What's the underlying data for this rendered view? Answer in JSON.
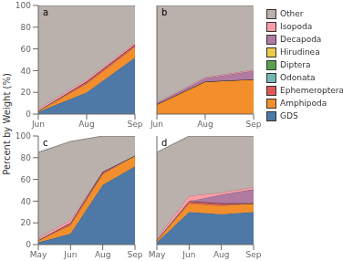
{
  "chart_data": [
    {
      "type": "area",
      "title": "a",
      "ylabel": "Percent by Weight (%)",
      "stacked": true,
      "grid": false,
      "legend": "right",
      "categories": [
        "Jun",
        "Aug",
        "Sep"
      ],
      "ylim": [
        0,
        100
      ],
      "yticks": [
        0,
        20,
        40,
        60,
        80,
        100
      ],
      "series": [
        {
          "name": "GDS",
          "color": "#4e79a7",
          "values": [
            2,
            20,
            52
          ]
        },
        {
          "name": "Amphipoda",
          "color": "#f28e2b",
          "values": [
            1,
            8,
            10
          ]
        },
        {
          "name": "Ephemeroptera",
          "color": "#e15759",
          "values": [
            0,
            2,
            2
          ]
        },
        {
          "name": "Odonata",
          "color": "#76b7b2",
          "values": [
            0,
            0,
            0
          ]
        },
        {
          "name": "Diptera",
          "color": "#59a14f",
          "values": [
            0,
            0,
            0
          ]
        },
        {
          "name": "Hirudinea",
          "color": "#edc948",
          "values": [
            0,
            0,
            0
          ]
        },
        {
          "name": "Decapoda",
          "color": "#b07aa1",
          "values": [
            0,
            0,
            0
          ]
        },
        {
          "name": "Isopoda",
          "color": "#ff9da7",
          "values": [
            2,
            2,
            2
          ]
        },
        {
          "name": "Other",
          "color": "#bab0ac",
          "values": [
            95,
            68,
            34
          ]
        }
      ]
    },
    {
      "type": "area",
      "title": "b",
      "stacked": true,
      "grid": false,
      "tick_labels": "x",
      "categories": [
        "Jun",
        "Aug",
        "Sep"
      ],
      "ylim": [
        0,
        100
      ],
      "yticks": [
        0,
        20,
        40,
        60,
        80,
        100
      ],
      "series": [
        {
          "name": "GDS",
          "color": "#4e79a7",
          "values": [
            0,
            0,
            0
          ]
        },
        {
          "name": "Amphipoda",
          "color": "#f28e2b",
          "values": [
            9,
            30,
            32
          ]
        },
        {
          "name": "Ephemeroptera",
          "color": "#e15759",
          "values": [
            0,
            0,
            0
          ]
        },
        {
          "name": "Odonata",
          "color": "#76b7b2",
          "values": [
            0,
            0,
            0
          ]
        },
        {
          "name": "Diptera",
          "color": "#59a14f",
          "values": [
            0,
            0,
            0
          ]
        },
        {
          "name": "Hirudinea",
          "color": "#edc948",
          "values": [
            0,
            0,
            0
          ]
        },
        {
          "name": "Decapoda",
          "color": "#b07aa1",
          "values": [
            1,
            3,
            8
          ]
        },
        {
          "name": "Isopoda",
          "color": "#ff9da7",
          "values": [
            1,
            1,
            1
          ]
        },
        {
          "name": "Other",
          "color": "#bab0ac",
          "values": [
            89,
            66,
            59
          ]
        }
      ]
    },
    {
      "type": "area",
      "title": "c",
      "stacked": true,
      "grid": false,
      "categories": [
        "May",
        "Jun",
        "Aug",
        "Sep"
      ],
      "ylim": [
        0,
        100
      ],
      "yticks": [
        0,
        20,
        40,
        60,
        80,
        100
      ],
      "series": [
        {
          "name": "GDS",
          "color": "#4e79a7",
          "values": [
            2,
            10,
            55,
            72
          ]
        },
        {
          "name": "Amphipoda",
          "color": "#f28e2b",
          "values": [
            2,
            8,
            10,
            10
          ]
        },
        {
          "name": "Ephemeroptera",
          "color": "#e15759",
          "values": [
            0,
            2,
            2,
            0
          ]
        },
        {
          "name": "Odonata",
          "color": "#76b7b2",
          "values": [
            0,
            0,
            0,
            0
          ]
        },
        {
          "name": "Diptera",
          "color": "#59a14f",
          "values": [
            0,
            0,
            0,
            0
          ]
        },
        {
          "name": "Hirudinea",
          "color": "#edc948",
          "values": [
            0,
            0,
            0,
            0
          ]
        },
        {
          "name": "Decapoda",
          "color": "#b07aa1",
          "values": [
            0,
            0,
            0,
            0
          ]
        },
        {
          "name": "Isopoda",
          "color": "#ff9da7",
          "values": [
            2,
            3,
            0,
            0
          ]
        },
        {
          "name": "Other",
          "color": "#bab0ac",
          "values": [
            79,
            72,
            33,
            18
          ]
        }
      ]
    },
    {
      "type": "area",
      "title": "d",
      "stacked": true,
      "grid": false,
      "tick_labels": "x",
      "categories": [
        "May",
        "Jun",
        "Aug",
        "Sep"
      ],
      "ylim": [
        0,
        100
      ],
      "yticks": [
        0,
        20,
        40,
        60,
        80,
        100
      ],
      "series": [
        {
          "name": "GDS",
          "color": "#4e79a7",
          "values": [
            2,
            30,
            28,
            30
          ]
        },
        {
          "name": "Amphipoda",
          "color": "#f28e2b",
          "values": [
            2,
            8,
            8,
            8
          ]
        },
        {
          "name": "Ephemeroptera",
          "color": "#e15759",
          "values": [
            0,
            2,
            2,
            0
          ]
        },
        {
          "name": "Odonata",
          "color": "#76b7b2",
          "values": [
            0,
            0,
            0,
            0
          ]
        },
        {
          "name": "Diptera",
          "color": "#59a14f",
          "values": [
            0,
            0,
            0,
            0
          ]
        },
        {
          "name": "Hirudinea",
          "color": "#edc948",
          "values": [
            0,
            0,
            0,
            0
          ]
        },
        {
          "name": "Decapoda",
          "color": "#b07aa1",
          "values": [
            0,
            0,
            8,
            13
          ]
        },
        {
          "name": "Isopoda",
          "color": "#ff9da7",
          "values": [
            2,
            5,
            2,
            2
          ]
        },
        {
          "name": "Other",
          "color": "#bab0ac",
          "values": [
            79,
            55,
            52,
            47
          ]
        }
      ]
    }
  ]
}
